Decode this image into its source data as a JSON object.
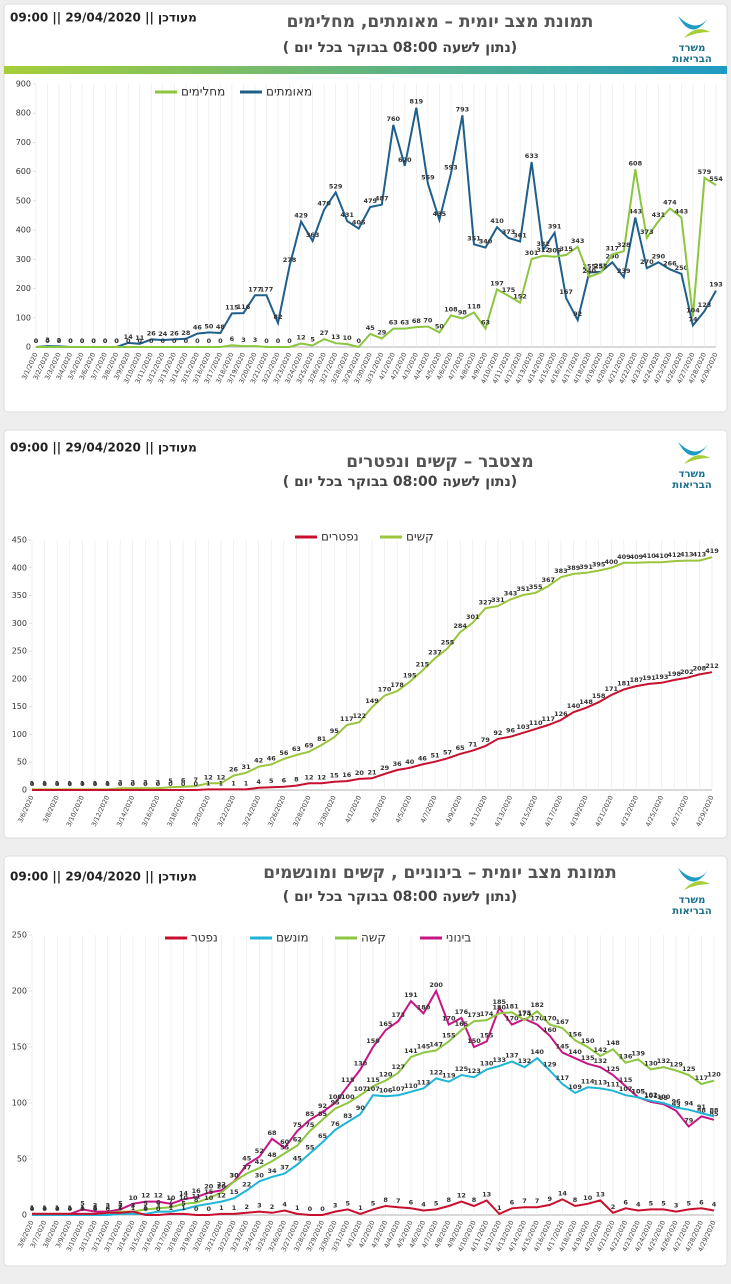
{
  "chart_data": [
    {
      "type": "line",
      "title": "תמונת מצב יומית – מאומתים, מחלימים",
      "subtitle": "( נתון לשעה 08:00 בבוקר בכל יום)",
      "updated": "מעודכן || 29/04/2020 || 09:00",
      "logo": [
        "משרד",
        "הבריאות"
      ],
      "categories": [
        "3/1/2020",
        "3/2/2020",
        "3/3/2020",
        "3/4/2020",
        "3/5/2020",
        "3/6/2020",
        "3/7/2020",
        "3/8/2020",
        "3/9/2020",
        "3/10/2020",
        "3/11/2020",
        "3/12/2020",
        "3/13/2020",
        "3/14/2020",
        "3/15/2020",
        "3/16/2020",
        "3/17/2020",
        "3/18/2020",
        "3/19/2020",
        "3/20/2020",
        "3/21/2020",
        "3/22/2020",
        "3/23/2020",
        "3/24/2020",
        "3/25/2020",
        "3/26/2020",
        "3/27/2020",
        "3/28/2020",
        "3/29/2020",
        "3/30/2020",
        "3/31/2020",
        "4/1/2020",
        "4/2/2020",
        "4/3/2020",
        "4/4/2020",
        "4/5/2020",
        "4/6/2020",
        "4/7/2020",
        "4/8/2020",
        "4/9/2020",
        "4/10/2020",
        "4/11/2020",
        "4/12/2020",
        "4/13/2020",
        "4/14/2020",
        "4/15/2020",
        "4/16/2020",
        "4/17/2020",
        "4/18/2020",
        "4/19/2020",
        "4/20/2020",
        "4/21/2020",
        "4/22/2020",
        "4/23/2020",
        "4/24/2020",
        "4/25/2020",
        "4/26/2020",
        "4/27/2020",
        "4/28/2020",
        "4/29/2020"
      ],
      "series": [
        {
          "name": "מאומתים",
          "color": "#1f5f8b",
          "values": [
            0,
            3,
            2,
            0,
            0,
            0,
            0,
            0,
            14,
            11,
            26,
            24,
            26,
            28,
            46,
            50,
            48,
            115,
            116,
            177,
            177,
            82,
            278,
            429,
            363,
            470,
            529,
            431,
            405,
            479,
            487,
            760,
            620,
            819,
            559,
            435,
            593,
            793,
            351,
            340,
            410,
            373,
            361,
            633,
            332,
            391,
            167,
            92,
            255,
            257,
            290,
            239,
            443,
            270,
            290,
            266,
            250,
            74,
            123,
            193
          ]
        },
        {
          "name": "מחלימים",
          "color": "#8cc63f",
          "values": [
            0,
            0,
            0,
            0,
            0,
            0,
            0,
            0,
            0,
            0,
            0,
            0,
            0,
            0,
            0,
            0,
            0,
            6,
            3,
            3,
            0,
            0,
            0,
            12,
            5,
            27,
            13,
            10,
            0,
            45,
            29,
            63,
            63,
            68,
            70,
            50,
            108,
            98,
            118,
            63,
            197,
            175,
            152,
            301,
            312,
            309,
            315,
            343,
            240,
            255,
            317,
            328,
            608,
            373,
            431,
            474,
            443,
            104,
            579,
            554
          ]
        }
      ],
      "ylim": [
        0,
        900
      ],
      "yticks": [
        0,
        100,
        200,
        300,
        400,
        500,
        600,
        700,
        800,
        900
      ],
      "grid": false
    },
    {
      "type": "line",
      "title": "מצטבר – קשים ונפטרים",
      "subtitle": "( נתון לשעה 08:00 בבוקר בכל יום)",
      "updated": "מעודכן || 29/04/2020 || 09:00",
      "logo": [
        "משרד",
        "הבריאות"
      ],
      "categories": [
        "3/6/2020",
        null,
        "3/8/2020",
        null,
        "3/10/2020",
        null,
        "3/12/2020",
        null,
        "3/14/2020",
        null,
        "3/16/2020",
        null,
        "3/18/2020",
        null,
        "3/20/2020",
        null,
        "3/22/2020",
        null,
        "3/24/2020",
        null,
        "3/26/2020",
        null,
        "3/28/2020",
        null,
        "3/30/2020",
        null,
        "4/1/2020",
        null,
        "4/3/2020",
        null,
        "4/5/2020",
        null,
        "4/7/2020",
        null,
        "4/9/2020",
        null,
        "4/11/2020",
        null,
        "4/13/2020",
        null,
        "4/15/2020",
        null,
        "4/17/2020",
        null,
        "4/19/2020",
        null,
        "4/21/2020",
        null,
        "4/23/2020",
        null,
        "4/25/2020",
        null,
        "4/27/2020",
        null,
        "4/29/2020"
      ],
      "series": [
        {
          "name": "קשים",
          "color": "#9bc53d",
          "values": [
            1,
            1,
            1,
            1,
            1,
            1,
            1,
            3,
            3,
            3,
            3,
            5,
            6,
            7,
            12,
            12,
            26,
            31,
            42,
            46,
            56,
            63,
            69,
            81,
            95,
            117,
            122,
            149,
            170,
            178,
            195,
            215,
            237,
            255,
            284,
            301,
            327,
            331,
            343,
            351,
            355,
            367,
            383,
            389,
            391,
            395,
            400,
            409,
            409,
            410,
            410,
            412,
            413,
            413,
            419
          ]
        },
        {
          "name": "נפטרים",
          "color": "#c8102e",
          "values": [
            0,
            0,
            0,
            0,
            0,
            0,
            0,
            0,
            0,
            0,
            0,
            0,
            0,
            0,
            1,
            1,
            1,
            1,
            4,
            5,
            6,
            8,
            12,
            12,
            15,
            16,
            20,
            21,
            29,
            36,
            40,
            46,
            51,
            57,
            65,
            71,
            79,
            92,
            96,
            103,
            110,
            117,
            126,
            140,
            148,
            158,
            171,
            181,
            187,
            191,
            193,
            198,
            202,
            208,
            212
          ]
        }
      ],
      "ylim": [
        0,
        450
      ],
      "yticks": [
        0,
        50,
        100,
        150,
        200,
        250,
        300,
        350,
        400,
        450
      ],
      "grid": false
    },
    {
      "type": "line",
      "title": "תמונת מצב יומית – בינוניים , קשים ומונשמים",
      "subtitle": "( נתון לשעה 08:00 בבוקר בכל יום)",
      "updated": "מעודכן || 29/04/2020 || 09:00",
      "logo": [
        "משרד",
        "הבריאות"
      ],
      "categories": [
        "3/6/2020",
        "3/7/2020",
        "3/8/2020",
        "3/9/2020",
        "3/10/2020",
        "3/11/2020",
        "3/12/2020",
        "3/13/2020",
        "3/14/2020",
        "3/15/2020",
        "3/16/2020",
        "3/17/2020",
        "3/18/2020",
        "3/19/2020",
        "3/20/2020",
        "3/21/2020",
        "3/22/2020",
        "3/23/2020",
        "3/24/2020",
        "3/25/2020",
        "3/26/2020",
        "3/27/2020",
        "3/28/2020",
        "3/29/2020",
        "3/30/2020",
        "3/31/2020",
        "4/1/2020",
        "4/2/2020",
        "4/3/2020",
        "4/4/2020",
        "4/5/2020",
        "4/6/2020",
        "4/7/2020",
        "4/8/2020",
        "4/9/2020",
        "4/10/2020",
        "4/11/2020",
        "4/12/2020",
        "4/13/2020",
        "4/14/2020",
        "4/15/2020",
        "4/16/2020",
        "4/17/2020",
        "4/18/2020",
        "4/19/2020",
        "4/20/2020",
        "4/21/2020",
        "4/22/2020",
        "4/23/2020",
        "4/24/2020",
        "4/25/2020",
        "4/26/2020",
        "4/27/2020",
        "4/28/2020",
        "4/29/2020"
      ],
      "series": [
        {
          "name": "בינוני",
          "color": "#c71585",
          "values": [
            1,
            1,
            1,
            1,
            5,
            3,
            3,
            5,
            10,
            12,
            12,
            10,
            14,
            16,
            20,
            22,
            30,
            45,
            52,
            68,
            60,
            75,
            85,
            92,
            100,
            115,
            130,
            150,
            165,
            173,
            191,
            180,
            200,
            170,
            176,
            150,
            155,
            185,
            170,
            175,
            170,
            160,
            145,
            140,
            135,
            132,
            125,
            115,
            105,
            101,
            99,
            93,
            79,
            88,
            85
          ]
        },
        {
          "name": "קשה",
          "color": "#8dc63f",
          "values": [
            1,
            1,
            1,
            1,
            1,
            1,
            2,
            3,
            3,
            5,
            6,
            7,
            10,
            11,
            15,
            20,
            30,
            37,
            42,
            48,
            55,
            62,
            75,
            85,
            95,
            100,
            107,
            115,
            120,
            127,
            141,
            145,
            147,
            155,
            165,
            173,
            174,
            180,
            181,
            174,
            182,
            170,
            167,
            156,
            150,
            142,
            148,
            136,
            139,
            130,
            132,
            129,
            125,
            117,
            120
          ]
        },
        {
          "name": "מונשם",
          "color": "#1fb5d6",
          "values": [
            0,
            0,
            0,
            0,
            0,
            0,
            0,
            1,
            1,
            1,
            3,
            3,
            5,
            8,
            10,
            12,
            15,
            22,
            30,
            34,
            37,
            45,
            55,
            65,
            76,
            83,
            90,
            107,
            106,
            107,
            110,
            113,
            122,
            119,
            125,
            123,
            130,
            133,
            137,
            132,
            140,
            129,
            117,
            109,
            114,
            113,
            111,
            107,
            105,
            102,
            100,
            96,
            94,
            91,
            88
          ]
        },
        {
          "name": "נפטר",
          "color": "#c8102e",
          "values": [
            1,
            1,
            1,
            1,
            1,
            1,
            2,
            2,
            3,
            0,
            0,
            1,
            1,
            0,
            0,
            1,
            1,
            2,
            3,
            2,
            4,
            1,
            0,
            0,
            3,
            5,
            1,
            5,
            8,
            7,
            6,
            4,
            5,
            8,
            12,
            8,
            13,
            1,
            6,
            7,
            7,
            9,
            14,
            8,
            10,
            13,
            2,
            6,
            4,
            5,
            5,
            3,
            5,
            6,
            4
          ]
        }
      ],
      "ylim": [
        0,
        250
      ],
      "yticks": [
        0,
        50,
        100,
        150,
        200,
        250
      ],
      "grid": false
    }
  ]
}
